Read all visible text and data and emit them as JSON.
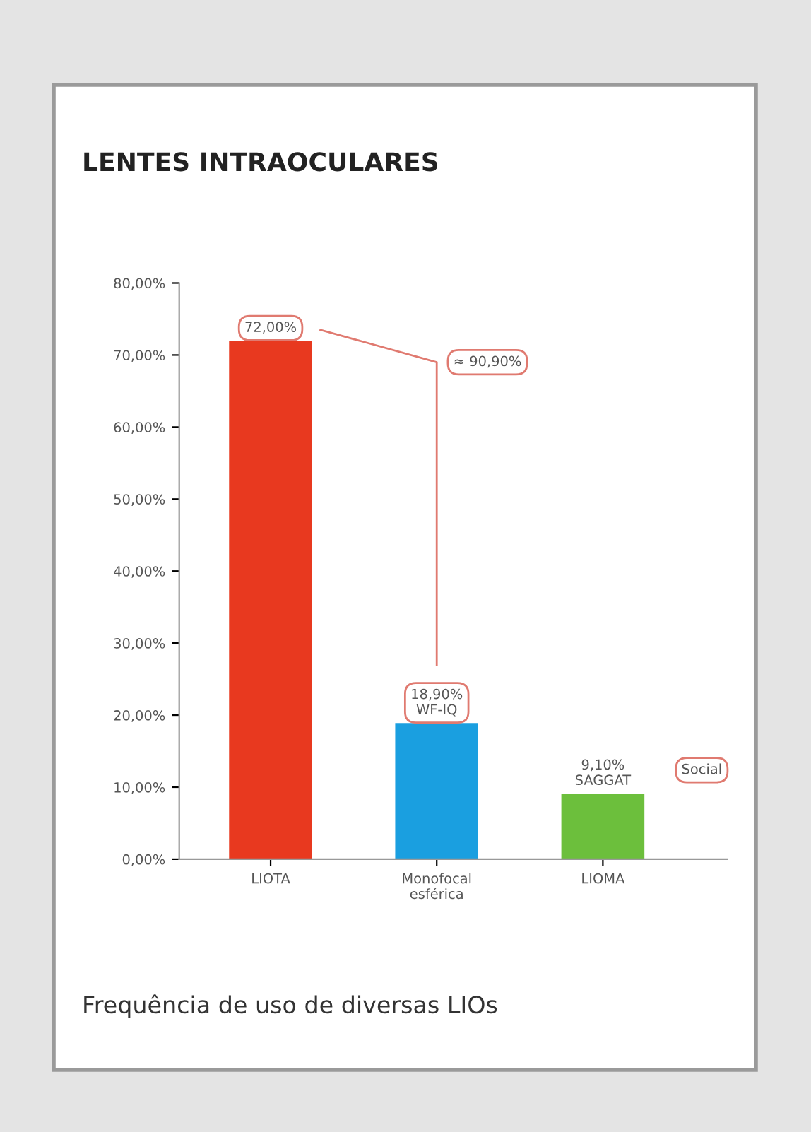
{
  "chart_data": {
    "type": "bar",
    "title": "LENTES INTRAOCULARES",
    "categories": [
      "LIOTA",
      "Monofocal esférica",
      "LIOMA"
    ],
    "values": [
      72.0,
      18.9,
      9.1
    ],
    "colors": [
      "#e8391f",
      "#1a9fe0",
      "#6cbf3c"
    ],
    "value_labels": [
      "72,00%",
      "18,90%\nWF-IQ",
      "9,10%\nSAGGAT"
    ],
    "ylim": [
      0,
      80
    ],
    "yticks": [
      {
        "value": 0,
        "label": "0,00%"
      },
      {
        "value": 10,
        "label": "10,00%"
      },
      {
        "value": 20,
        "label": "20,00%"
      },
      {
        "value": 30,
        "label": "30,00%"
      },
      {
        "value": 40,
        "label": "40,00%"
      },
      {
        "value": 50,
        "label": "50,00%"
      },
      {
        "value": 60,
        "label": "60,00%"
      },
      {
        "value": 70,
        "label": "70,00%"
      },
      {
        "value": 80,
        "label": "80,00%"
      }
    ],
    "grid": false,
    "annotations": [
      "≈ 90,90%",
      "Social",
      "Frequência de uso de diversas LIOs"
    ]
  }
}
